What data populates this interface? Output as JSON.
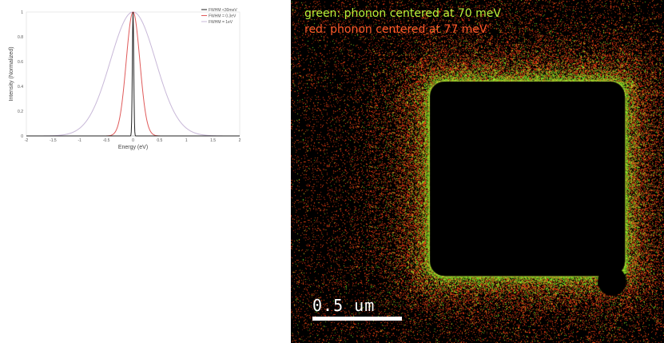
{
  "chart_data": {
    "type": "line",
    "xlabel": "Energy (eV)",
    "ylabel": "Intensity (Normalized)",
    "xlim": [
      -2,
      2
    ],
    "ylim": [
      0,
      1
    ],
    "x_ticks": [
      "-2",
      "-1.5",
      "-1",
      "-0.5",
      "0",
      "0.5",
      "1",
      "1.5",
      "2"
    ],
    "y_ticks": [
      "0",
      "0.2",
      "0.4",
      "0.6",
      "0.8",
      "1"
    ],
    "grid": false,
    "legend_position": "top-right",
    "series": [
      {
        "name": "FWHM <30meV",
        "color": "#222222",
        "center": 0,
        "fwhm": 0.03,
        "peak": 1
      },
      {
        "name": "FWHM = 0.3eV",
        "color": "#e05a5a",
        "center": 0,
        "fwhm": 0.3,
        "peak": 1
      },
      {
        "name": "FWHM = 1eV",
        "color": "#c8b8d8",
        "center": 0,
        "fwhm": 1,
        "peak": 1
      }
    ]
  },
  "map": {
    "caption_green": "green: phonon centered at 70 meV",
    "caption_red": "red: phonon centered at 77 meV",
    "scale_label": "0.5 um",
    "colors": {
      "green": "#b8f23a",
      "red": "#ff5a2a",
      "background": "#000000"
    }
  }
}
